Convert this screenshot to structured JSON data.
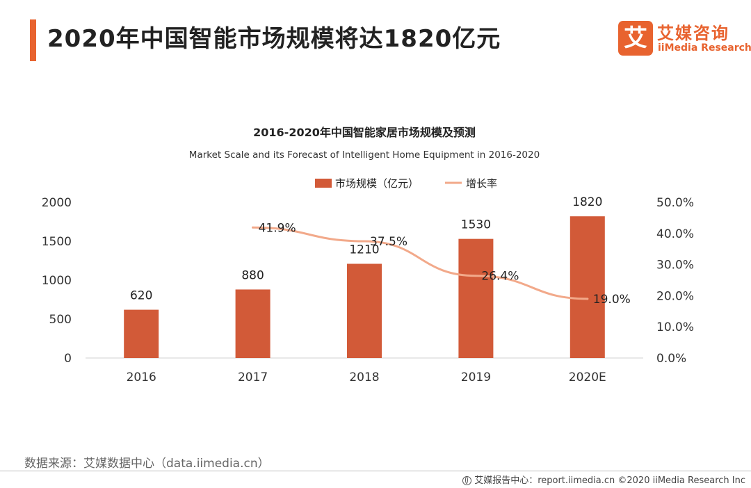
{
  "header": {
    "title": "2020年中国智能市场规模将达1820亿元"
  },
  "logo": {
    "icon_char": "艾",
    "name_cn": "艾媒咨询",
    "name_en": "iiMedia Research"
  },
  "chart_data": {
    "type": "bar",
    "title": "2016-2020年中国智能家居市场规模及预测",
    "subtitle": "Market Scale and its Forecast of Intelligent Home Equipment in 2016-2020",
    "categories": [
      "2016",
      "2017",
      "2018",
      "2019",
      "2020E"
    ],
    "series": [
      {
        "name": "市场规模（亿元）",
        "type": "bar",
        "axis": "left",
        "color": "#d25a38",
        "values": [
          620,
          880,
          1210,
          1530,
          1820
        ],
        "labels": [
          "620",
          "880",
          "1210",
          "1530",
          "1820"
        ]
      },
      {
        "name": "增长率",
        "type": "line",
        "axis": "right",
        "color": "#f2a98a",
        "values": [
          null,
          41.9,
          37.5,
          26.4,
          19.0
        ],
        "labels": [
          "",
          "41.9%",
          "37.5%",
          "26.4%",
          "19.0%"
        ]
      }
    ],
    "y_left": {
      "ticks": [
        "2000",
        "1500",
        "1000",
        "500",
        "0"
      ],
      "ylim": [
        0,
        2000
      ]
    },
    "y_right": {
      "ticks": [
        "50.0%",
        "40.0%",
        "30.0%",
        "20.0%",
        "10.0%",
        "0.0%"
      ],
      "ylim": [
        0,
        50
      ]
    },
    "legend_position": "top-center",
    "grid": false
  },
  "footer": {
    "source": "数据来源：艾媒数据中心（data.iimedia.cn）",
    "credit": "艾媒报告中心：report.iimedia.cn  ©2020  iiMedia Research  Inc"
  }
}
